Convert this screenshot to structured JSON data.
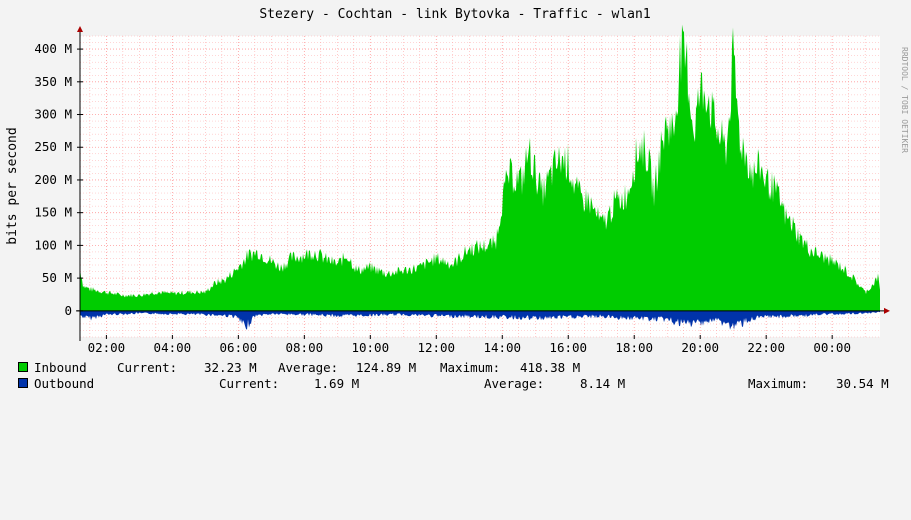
{
  "chart_data": {
    "type": "area",
    "title": "Stezery - Cochtan - link Bytovka - Traffic - wlan1",
    "ylabel": "bits per second",
    "watermark": "RRDTOOL / TOBI OETIKER",
    "ylim": [
      -40,
      420
    ],
    "y_ticks": [
      {
        "value": 0,
        "label": "0"
      },
      {
        "value": 50,
        "label": "50 M"
      },
      {
        "value": 100,
        "label": "100 M"
      },
      {
        "value": 150,
        "label": "150 M"
      },
      {
        "value": 200,
        "label": "200 M"
      },
      {
        "value": 250,
        "label": "250 M"
      },
      {
        "value": 300,
        "label": "300 M"
      },
      {
        "value": 350,
        "label": "350 M"
      },
      {
        "value": 400,
        "label": "400 M"
      }
    ],
    "x_range_hours": [
      1.2,
      25.45
    ],
    "x_ticks": [
      {
        "value": 2,
        "label": "02:00"
      },
      {
        "value": 4,
        "label": "04:00"
      },
      {
        "value": 6,
        "label": "06:00"
      },
      {
        "value": 8,
        "label": "08:00"
      },
      {
        "value": 10,
        "label": "10:00"
      },
      {
        "value": 12,
        "label": "12:00"
      },
      {
        "value": 14,
        "label": "14:00"
      },
      {
        "value": 16,
        "label": "16:00"
      },
      {
        "value": 18,
        "label": "18:00"
      },
      {
        "value": 20,
        "label": "20:00"
      },
      {
        "value": 22,
        "label": "22:00"
      },
      {
        "value": 24,
        "label": "00:00"
      }
    ],
    "grid": true,
    "colors": {
      "inbound": "#00cc00",
      "outbound": "#0000ff",
      "grid": "#ff9999",
      "axis": "#000000"
    },
    "series": [
      {
        "name": "Inbound",
        "x": [
          1.2,
          1.3,
          1.5,
          2.0,
          2.5,
          3.0,
          3.5,
          4.0,
          4.5,
          5.0,
          5.3,
          5.6,
          6.0,
          6.3,
          6.6,
          7.0,
          7.3,
          7.6,
          8.0,
          8.3,
          8.6,
          9.0,
          9.3,
          9.6,
          10.0,
          10.5,
          11.0,
          11.5,
          12.0,
          12.5,
          13.0,
          13.5,
          13.8,
          14.0,
          14.2,
          14.4,
          14.6,
          14.8,
          15.0,
          15.2,
          15.4,
          15.6,
          15.8,
          16.0,
          16.2,
          16.4,
          16.6,
          16.8,
          17.0,
          17.2,
          17.4,
          17.6,
          17.8,
          18.0,
          18.2,
          18.4,
          18.6,
          18.8,
          19.0,
          19.2,
          19.4,
          19.6,
          19.8,
          20.0,
          20.2,
          20.4,
          20.6,
          20.8,
          21.0,
          21.2,
          21.4,
          21.6,
          21.8,
          22.0,
          22.2,
          22.4,
          22.6,
          22.8,
          23.0,
          23.3,
          23.6,
          24.0,
          24.3,
          24.6,
          25.0,
          25.2,
          25.4,
          25.45
        ],
        "values": [
          70,
          40,
          35,
          30,
          25,
          25,
          30,
          28,
          30,
          30,
          45,
          50,
          70,
          90,
          95,
          80,
          70,
          85,
          90,
          95,
          85,
          75,
          90,
          65,
          70,
          60,
          65,
          70,
          85,
          75,
          100,
          105,
          110,
          180,
          220,
          215,
          210,
          260,
          225,
          190,
          210,
          235,
          245,
          240,
          200,
          180,
          180,
          160,
          140,
          150,
          175,
          180,
          190,
          240,
          270,
          250,
          190,
          260,
          305,
          290,
          415,
          395,
          290,
          355,
          360,
          310,
          280,
          260,
          410,
          280,
          250,
          220,
          235,
          210,
          200,
          180,
          150,
          140,
          120,
          100,
          90,
          80,
          70,
          55,
          30,
          40,
          55,
          32
        ]
      },
      {
        "name": "Outbound",
        "x": [
          1.2,
          1.5,
          2.0,
          3.0,
          4.0,
          5.0,
          5.8,
          6.0,
          6.2,
          6.5,
          7.0,
          8.0,
          9.0,
          10.0,
          11.0,
          12.0,
          13.0,
          14.0,
          15.0,
          16.0,
          17.0,
          18.0,
          19.0,
          19.5,
          20.0,
          20.5,
          21.0,
          21.5,
          22.0,
          23.0,
          24.0,
          25.0,
          25.45
        ],
        "values": [
          8,
          12,
          6,
          4,
          5,
          6,
          8,
          12,
          28,
          8,
          5,
          6,
          8,
          7,
          6,
          8,
          9,
          10,
          12,
          10,
          9,
          12,
          14,
          22,
          18,
          15,
          26,
          14,
          10,
          8,
          5,
          4,
          2
        ]
      }
    ]
  },
  "legend": {
    "inbound": {
      "label": "Inbound",
      "current_label": "Current:",
      "current": "32.23 M",
      "average_label": "Average:",
      "average": "124.89 M",
      "maximum_label": "Maximum:",
      "maximum": "418.38 M"
    },
    "outbound": {
      "label": "Outbound",
      "current_label": "Current:",
      "current": "1.69 M",
      "average_label": "Average:",
      "average": "8.14 M",
      "maximum_label": "Maximum:",
      "maximum": "30.54 M"
    }
  }
}
